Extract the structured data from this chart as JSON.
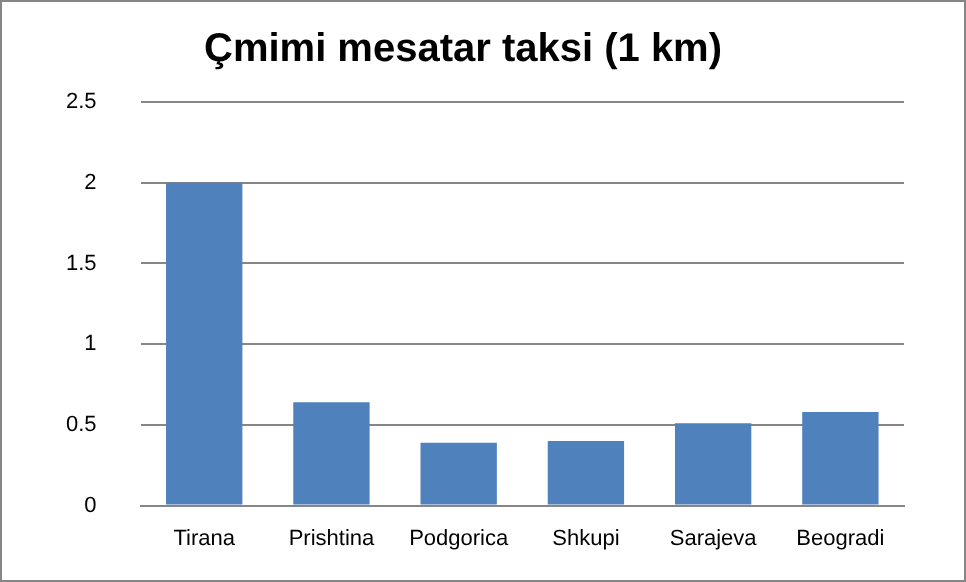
{
  "chart_data": {
    "type": "bar",
    "title": "Çmimi mesatar taksi (1 km)",
    "categories": [
      "Tirana",
      "Prishtina",
      "Podgorica",
      "Shkupi",
      "Sarajeva",
      "Beogradi"
    ],
    "values": [
      2,
      0.64,
      0.39,
      0.4,
      0.51,
      0.58
    ],
    "color": "#4f81bd",
    "ylim": [
      0,
      2.5
    ],
    "yticks": [
      0,
      0.5,
      1,
      1.5,
      2,
      2.5
    ],
    "grid": "y",
    "legend": false
  }
}
